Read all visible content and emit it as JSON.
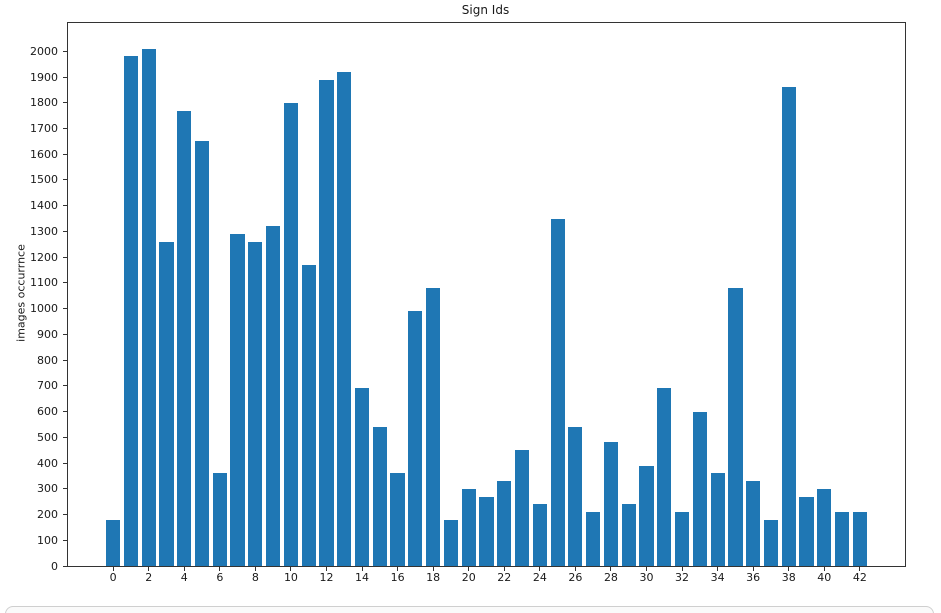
{
  "chart_data": {
    "type": "bar",
    "title": "Sign Ids",
    "xlabel": "",
    "ylabel": "images occurrnce",
    "categories": [
      0,
      1,
      2,
      3,
      4,
      5,
      6,
      7,
      8,
      9,
      10,
      11,
      12,
      13,
      14,
      15,
      16,
      17,
      18,
      19,
      20,
      21,
      22,
      23,
      24,
      25,
      26,
      27,
      28,
      29,
      30,
      31,
      32,
      33,
      34,
      35,
      36,
      37,
      38,
      39,
      40,
      41,
      42
    ],
    "values": [
      180,
      1980,
      2010,
      1260,
      1770,
      1650,
      360,
      1290,
      1260,
      1320,
      1800,
      1170,
      1890,
      1920,
      690,
      540,
      360,
      990,
      1080,
      180,
      300,
      270,
      330,
      450,
      240,
      1350,
      540,
      210,
      480,
      240,
      390,
      690,
      210,
      599,
      360,
      1080,
      330,
      180,
      1860,
      270,
      300,
      210,
      210
    ],
    "ylim": [
      0,
      2110
    ],
    "xlim": [
      -2.54,
      44.54
    ],
    "yticks": [
      0,
      100,
      200,
      300,
      400,
      500,
      600,
      700,
      800,
      900,
      1000,
      1100,
      1200,
      1300,
      1400,
      1500,
      1600,
      1700,
      1800,
      1900,
      2000
    ],
    "xticks": [
      0,
      2,
      4,
      6,
      8,
      10,
      12,
      14,
      16,
      18,
      20,
      22,
      24,
      26,
      28,
      30,
      32,
      34,
      36,
      38,
      40,
      42
    ],
    "bar_width": 0.8,
    "grid": false,
    "legend": "none",
    "colors": {
      "bar": "#1f77b4",
      "spine": "#333333",
      "text": "#1a1a1a",
      "cell_background": "#fafafa",
      "cell_border": "#cfcfcf"
    }
  }
}
